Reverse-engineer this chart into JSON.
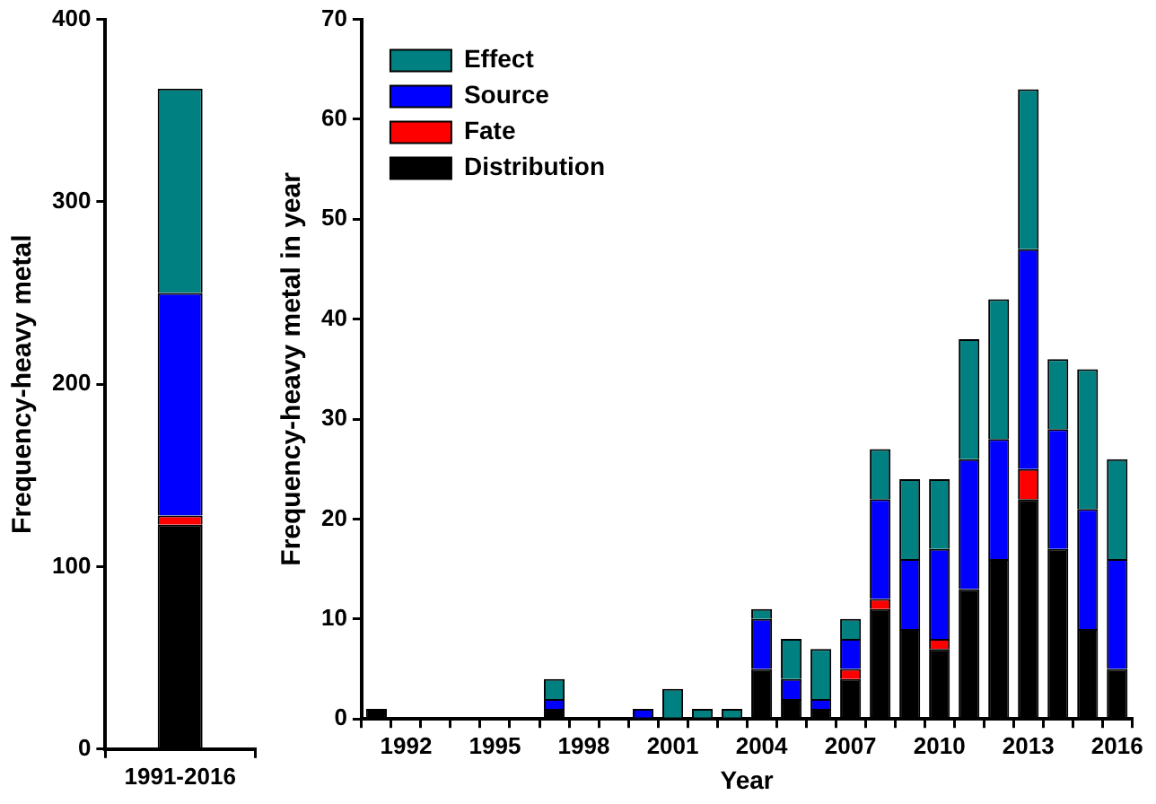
{
  "chart_data": [
    {
      "type": "bar",
      "ylabel": "Frequency-heavy metal",
      "categories": [
        "1991-2016"
      ],
      "stacked": true,
      "ylim": [
        0,
        400
      ],
      "yticks": [
        0,
        100,
        200,
        300,
        400
      ],
      "grid": false,
      "legend": false,
      "series": [
        {
          "color": "#000000",
          "values": [
            123
          ]
        },
        {
          "color": "#ff0000",
          "values": [
            5
          ]
        },
        {
          "color": "#0000ff",
          "values": [
            122
          ]
        },
        {
          "color": "#008080",
          "values": [
            112
          ]
        }
      ]
    },
    {
      "type": "bar",
      "xlabel": "Year",
      "ylabel": "Frequency-heavy metal in year",
      "categories": [
        null,
        "1992",
        null,
        null,
        "1995",
        null,
        null,
        "1998",
        null,
        null,
        "2001",
        null,
        null,
        "2004",
        null,
        null,
        "2007",
        null,
        null,
        "2010",
        null,
        null,
        "2013",
        null,
        null,
        "2016"
      ],
      "stacked": true,
      "ylim": [
        0,
        70
      ],
      "yticks": [
        0,
        10,
        20,
        30,
        40,
        50,
        60,
        70
      ],
      "grid": false,
      "legend": "top left",
      "series": [
        {
          "name": "Distribution",
          "color": "#000000",
          "values": [
            1,
            0,
            0,
            0,
            0,
            0,
            1,
            0,
            0,
            0,
            0,
            0,
            0,
            5,
            2,
            1,
            4,
            11,
            9,
            7,
            13,
            16,
            22,
            17,
            9,
            5
          ]
        },
        {
          "name": "Fate",
          "color": "#ff0000",
          "values": [
            0,
            0,
            0,
            0,
            0,
            0,
            0,
            0,
            0,
            0,
            0,
            0,
            0,
            0,
            0,
            0,
            1,
            1,
            0,
            1,
            0,
            0,
            3,
            0,
            0,
            0
          ]
        },
        {
          "name": "Source",
          "color": "#0000ff",
          "values": [
            0,
            0,
            0,
            0,
            0,
            0,
            1,
            0,
            0,
            1,
            0,
            0,
            0,
            5,
            2,
            1,
            3,
            10,
            7,
            9,
            13,
            12,
            22,
            12,
            12,
            11
          ]
        },
        {
          "name": "Effect",
          "color": "#008080",
          "values": [
            0,
            0,
            0,
            0,
            0,
            0,
            2,
            0,
            0,
            0,
            3,
            1,
            1,
            1,
            4,
            5,
            2,
            5,
            8,
            7,
            12,
            14,
            16,
            7,
            14,
            10
          ]
        }
      ]
    }
  ]
}
